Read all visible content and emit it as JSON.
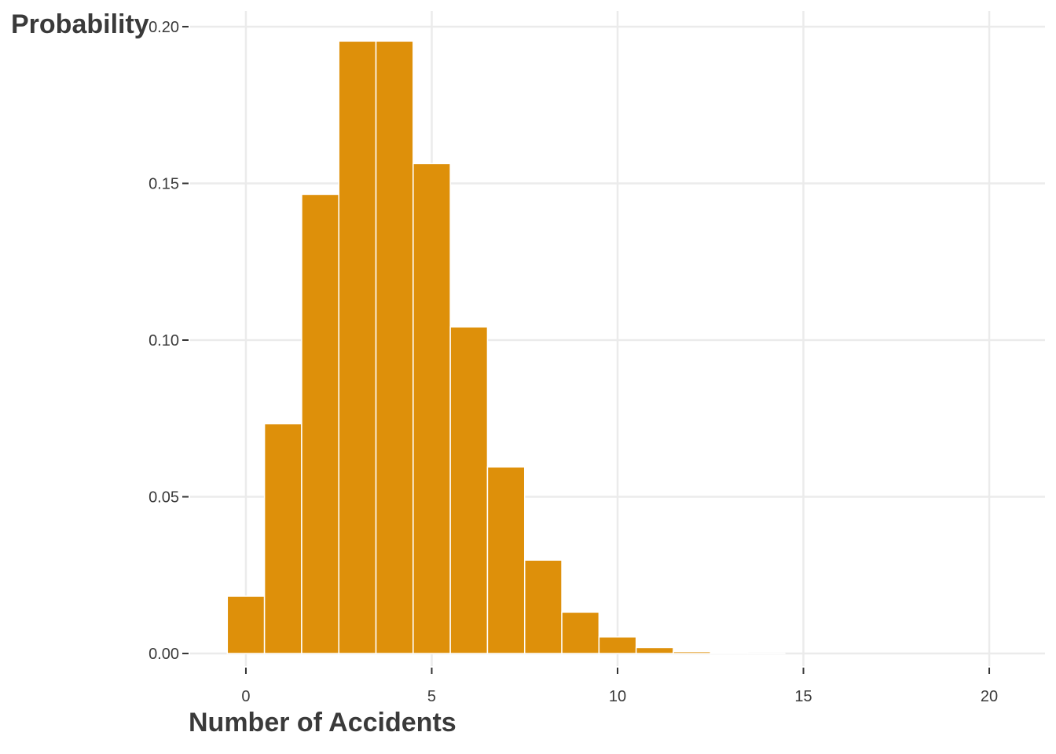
{
  "chart_data": {
    "type": "bar",
    "title": "",
    "xlabel": "Number of Accidents",
    "ylabel": "Probability",
    "x": [
      0,
      1,
      2,
      3,
      4,
      5,
      6,
      7,
      8,
      9,
      10,
      11,
      12,
      13,
      14,
      15,
      16,
      17,
      18,
      19,
      20
    ],
    "values": [
      0.0183,
      0.0733,
      0.1465,
      0.1954,
      0.1954,
      0.1563,
      0.1042,
      0.0595,
      0.0298,
      0.0132,
      0.0053,
      0.0019,
      0.0006,
      0.0002,
      0.0001,
      0.0,
      0.0,
      0.0,
      0.0,
      0.0,
      0.0
    ],
    "xlim": [
      -1.5,
      21.5
    ],
    "ylim": [
      -0.004,
      0.205
    ],
    "xticks": [
      0,
      5,
      10,
      15,
      20
    ],
    "xtick_labels": [
      "0",
      "5",
      "10",
      "15",
      "20"
    ],
    "yticks": [
      0,
      0.05,
      0.1,
      0.15,
      0.2
    ],
    "ytick_labels": [
      "0.00",
      "0.05",
      "0.10",
      "0.15",
      "0.20"
    ],
    "bar_color": "#DE900A",
    "grid": true,
    "legend": "none"
  }
}
